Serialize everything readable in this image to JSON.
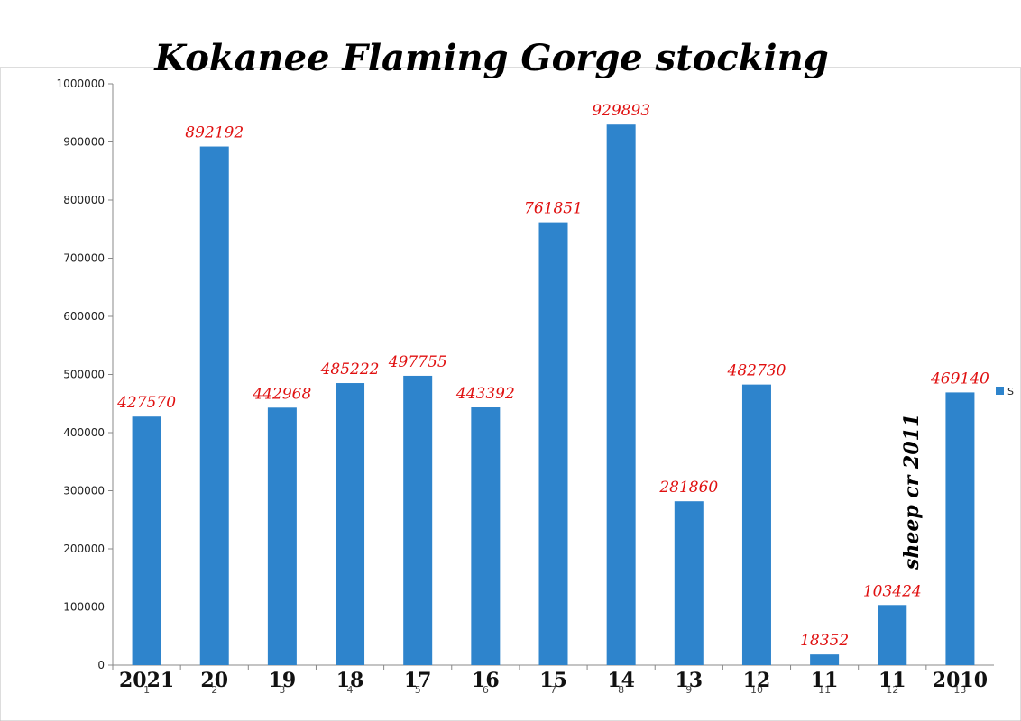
{
  "chart_data": {
    "type": "bar",
    "title": "Kokanee Flaming Gorge stocking",
    "index_labels": [
      "1",
      "2",
      "3",
      "4",
      "5",
      "6",
      "7",
      "8",
      "9",
      "10",
      "11",
      "12",
      "13"
    ],
    "year_labels": [
      "2021",
      "20",
      "19",
      "18",
      "17",
      "16",
      "15",
      "14",
      "13",
      "12",
      "11",
      "11",
      "2010"
    ],
    "series": [
      {
        "name": "S",
        "color": "#2e84cc",
        "values": [
          427570,
          892192,
          442968,
          485222,
          497755,
          443392,
          761851,
          929893,
          281860,
          482730,
          18352,
          103424,
          469140
        ]
      }
    ],
    "data_labels": [
      "427570",
      "892192",
      "442968",
      "485222",
      "497755",
      "443392",
      "761851",
      "929893",
      "281860",
      "482730",
      "18352",
      "103424",
      "469140"
    ],
    "ylim": [
      0,
      1000000
    ],
    "yticks": [
      "0",
      "100000",
      "200000",
      "300000",
      "400000",
      "500000",
      "600000",
      "700000",
      "800000",
      "900000",
      "1000000"
    ],
    "annotation": "sheep cr 2011",
    "legend": {
      "label": "S",
      "placement": "right"
    },
    "grid": false
  }
}
